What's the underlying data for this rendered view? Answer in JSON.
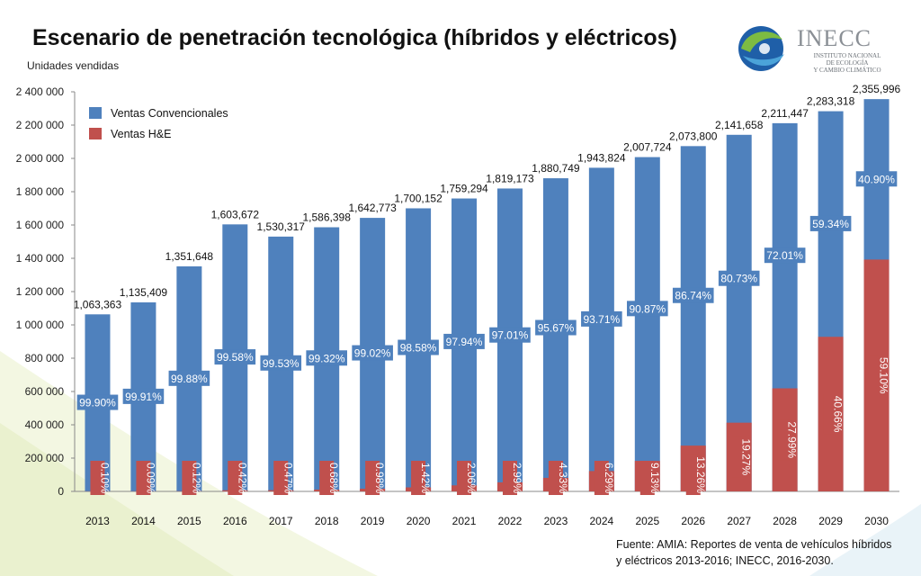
{
  "title": "Escenario de penetración tecnológica (híbridos y eléctricos)",
  "logo": {
    "name": "INECC",
    "lines": [
      "INSTITUTO NACIONAL",
      "DE ECOLOGÍA",
      "Y CAMBIO CLIMÁTICO"
    ]
  },
  "source_lines": [
    "Fuente: AMIA: Reportes de venta de vehículos híbridos",
    "y eléctricos 2013-2016; INECC, 2016-2030."
  ],
  "chart_data": {
    "type": "bar",
    "stacked": true,
    "ylabel": "Unidades vendidas",
    "ylim": [
      0,
      2400000
    ],
    "yticks": [
      0,
      200000,
      400000,
      600000,
      800000,
      1000000,
      1200000,
      1400000,
      1600000,
      1800000,
      2000000,
      2200000,
      2400000
    ],
    "ytick_labels": [
      "0",
      "200 000",
      "400 000",
      "600 000",
      "800 000",
      "1 000 000",
      "1 200 000",
      "1 400 000",
      "1 600 000",
      "1 800 000",
      "2 000 000",
      "2 200 000",
      "2 400 000"
    ],
    "categories": [
      "2013",
      "2014",
      "2015",
      "2016",
      "2017",
      "2018",
      "2019",
      "2020",
      "2021",
      "2022",
      "2023",
      "2024",
      "2025",
      "2026",
      "2027",
      "2028",
      "2029",
      "2030"
    ],
    "totals": [
      1063363,
      1135409,
      1351648,
      1603672,
      1530317,
      1586398,
      1642773,
      1700152,
      1759294,
      1819173,
      1880749,
      1943824,
      2007724,
      2073800,
      2141658,
      2211447,
      2283318,
      2355996
    ],
    "total_labels": [
      "1,063,363",
      "1,135,409",
      "1,351,648",
      "1,603,672",
      "1,530,317",
      "1,586,398",
      "1,642,773",
      "1,700,152",
      "1,759,294",
      "1,819,173",
      "1,880,749",
      "1,943,824",
      "2,007,724",
      "2,073,800",
      "2,141,658",
      "2,211,447",
      "2,283,318",
      "2,355,996"
    ],
    "series": [
      {
        "name": "Ventas Convencionales",
        "color": "#4f81bd",
        "percent": [
          99.9,
          99.91,
          99.88,
          99.58,
          99.53,
          99.32,
          99.02,
          98.58,
          97.94,
          97.01,
          95.67,
          93.71,
          90.87,
          86.74,
          80.73,
          72.01,
          59.34,
          40.9
        ],
        "labels": [
          "99.90%",
          "99.91%",
          "99.88%",
          "99.58%",
          "99.53%",
          "99.32%",
          "99.02%",
          "98.58%",
          "97.94%",
          "97.01%",
          "95.67%",
          "93.71%",
          "90.87%",
          "86.74%",
          "80.73%",
          "72.01%",
          "59.34%",
          "40.90%"
        ]
      },
      {
        "name": "Ventas H&E",
        "color": "#c0504d",
        "percent": [
          0.1,
          0.09,
          0.12,
          0.42,
          0.47,
          0.68,
          0.98,
          1.42,
          2.06,
          2.99,
          4.33,
          6.29,
          9.13,
          13.26,
          19.27,
          27.99,
          40.66,
          59.1
        ],
        "labels": [
          "0.10%",
          "0.09%",
          "0.12%",
          "0.42%",
          "0.47%",
          "0.68%",
          "0.98%",
          "1.42%",
          "2.06%",
          "2.99%",
          "4.33%",
          "6.29%",
          "9.13%",
          "13.26%",
          "19.27%",
          "27.99%",
          "40.66%",
          "59.10%"
        ]
      }
    ],
    "legend": "top-left",
    "grid": false
  }
}
